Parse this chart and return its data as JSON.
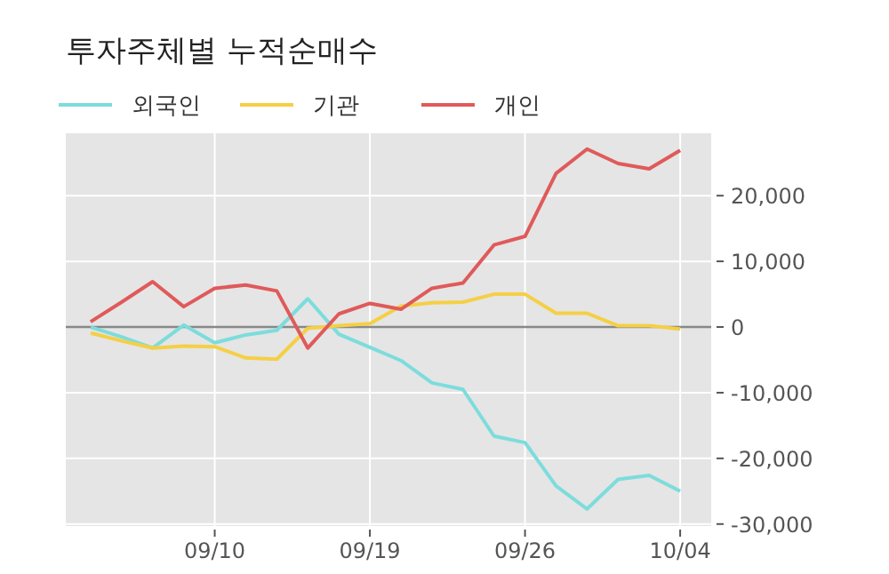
{
  "chart_data": {
    "type": "line",
    "title": "투자주체별 누적순매수",
    "categories": [
      null,
      null,
      null,
      null,
      "09/10",
      null,
      null,
      null,
      null,
      "09/19",
      null,
      null,
      null,
      null,
      "09/26",
      null,
      null,
      null,
      null,
      "10/04"
    ],
    "series": [
      {
        "name": "외국인",
        "color": "#7ddcdc",
        "values": [
          0,
          -1500,
          -3200,
          300,
          -2400,
          -1200,
          -500,
          4300,
          -1100,
          -3100,
          -5100,
          -8500,
          -9500,
          -16600,
          -17600,
          -24200,
          -27700,
          -23200,
          -22600,
          -25000
        ]
      },
      {
        "name": "기관",
        "color": "#f5cf45",
        "values": [
          -900,
          -2100,
          -3200,
          -2900,
          -3000,
          -4700,
          -4900,
          -200,
          200,
          500,
          3200,
          3700,
          3800,
          5000,
          5000,
          2100,
          2100,
          200,
          200,
          -300
        ]
      },
      {
        "name": "개인",
        "color": "#e05a5a",
        "values": [
          800,
          3800,
          6900,
          3100,
          5900,
          6400,
          5500,
          -3200,
          2000,
          3600,
          2700,
          5900,
          6700,
          12500,
          13800,
          23400,
          27100,
          24900,
          24100,
          26900
        ]
      }
    ],
    "ylim": [
      -30300,
      29500
    ],
    "yticks": [
      {
        "value": -30000,
        "label": "-30,000"
      },
      {
        "value": -20000,
        "label": "-20,000"
      },
      {
        "value": -10000,
        "label": "-10,000"
      },
      0,
      {
        "value": 10000,
        "label": "10,000"
      },
      {
        "value": 20000,
        "label": "20,000"
      }
    ],
    "ref_lines": [
      {
        "axis": "y",
        "value": 0,
        "color": "#888888"
      }
    ],
    "grid": true,
    "legend": "top left",
    "line_style": "solid",
    "marker": "none"
  }
}
